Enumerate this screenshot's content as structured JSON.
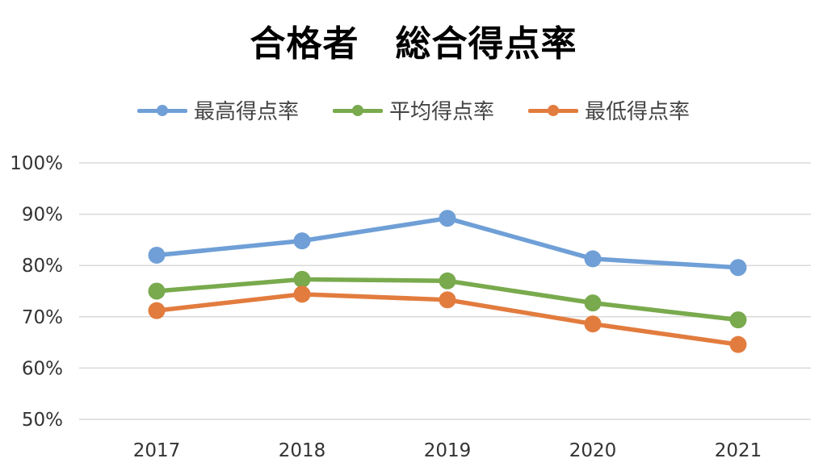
{
  "chart_data": {
    "type": "line",
    "title": "合格者　総合得点率",
    "categories": [
      "2017",
      "2018",
      "2019",
      "2020",
      "2021"
    ],
    "series": [
      {
        "name": "最高得点率",
        "color": "#6f9fd6",
        "values": [
          82.0,
          84.8,
          89.2,
          81.3,
          79.6
        ]
      },
      {
        "name": "平均得点率",
        "color": "#79aa4d",
        "values": [
          75.0,
          77.3,
          77.0,
          72.7,
          69.4
        ]
      },
      {
        "name": "最低得点率",
        "color": "#e27c3e",
        "values": [
          71.2,
          74.4,
          73.3,
          68.6,
          64.6
        ]
      }
    ],
    "y_ticks": [
      "50%",
      "60%",
      "70%",
      "80%",
      "90%",
      "100%"
    ],
    "ylim": [
      50,
      100
    ],
    "grid": true,
    "legend_position": "top",
    "gridline_color": "#d9d9d9"
  }
}
